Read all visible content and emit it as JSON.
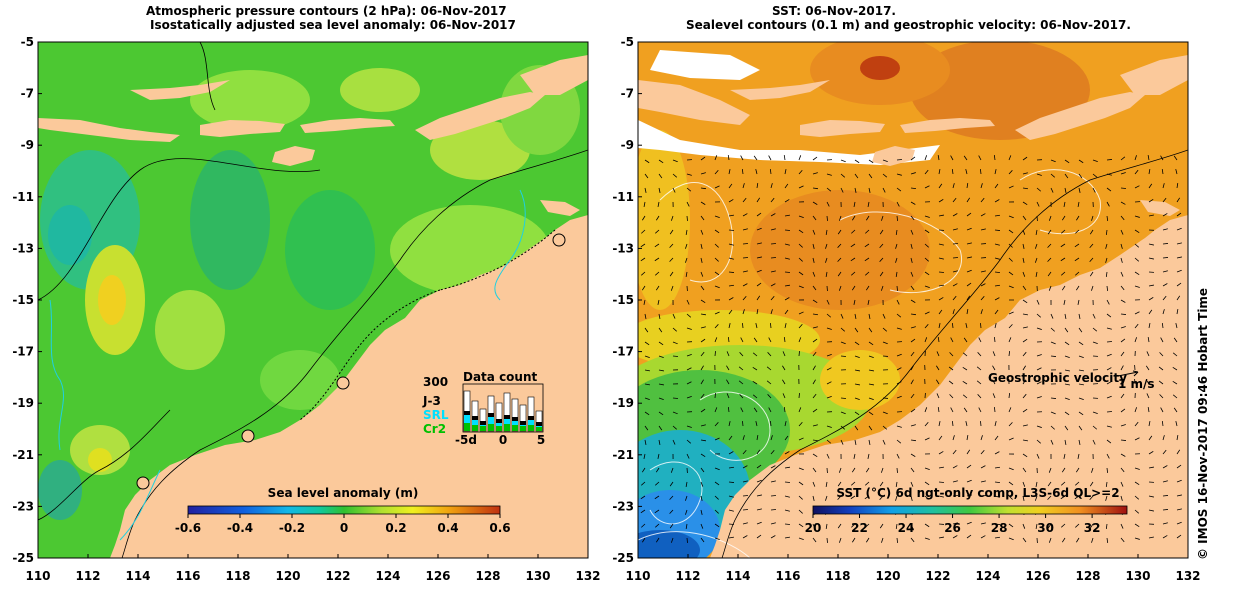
{
  "left_panel": {
    "title_line1": "Atmospheric pressure contours (2 hPa): 06-Nov-2017",
    "title_line2": "Isostatically adjusted sea level anomaly: 06-Nov-2017",
    "y_ticks": [
      "-5",
      "-7",
      "-9",
      "-11",
      "-13",
      "-15",
      "-17",
      "-19",
      "-21",
      "-23",
      "-25"
    ],
    "x_ticks": [
      "110",
      "112",
      "114",
      "116",
      "118",
      "120",
      "122",
      "124",
      "126",
      "128",
      "130",
      "132"
    ],
    "colorbar_label": "Sea level anomaly (m)",
    "colorbar_ticks": [
      "-0.6",
      "-0.4",
      "-0.2",
      "0",
      "0.2",
      "0.4",
      "0.6"
    ],
    "colorbar_range": [
      -0.6,
      0.6
    ],
    "data_count": {
      "title": "Data count",
      "ymax_label": "300",
      "series_labels": [
        "J-3",
        "SRL",
        "Cr2"
      ],
      "series_colors": [
        "#000000",
        "#00e0ff",
        "#00c000"
      ],
      "x_ticks": [
        "-5d",
        "0",
        "5"
      ]
    }
  },
  "right_panel": {
    "title_line1": "SST: 06-Nov-2017.",
    "title_line2": "Sealevel contours (0.1 m) and geostrophic velocity: 06-Nov-2017.",
    "y_ticks": [
      "-5",
      "-7",
      "-9",
      "-11",
      "-13",
      "-15",
      "-17",
      "-19",
      "-21",
      "-23",
      "-25"
    ],
    "x_ticks": [
      "110",
      "112",
      "114",
      "116",
      "118",
      "120",
      "122",
      "124",
      "126",
      "128",
      "130",
      "132"
    ],
    "velocity_label": "Geostrophic velocity",
    "velocity_scale": "1 m/s",
    "colorbar_label": "SST (°C) 6d ngt-only comp, L3S-6d QL>=2",
    "colorbar_ticks": [
      "20",
      "22",
      "24",
      "26",
      "28",
      "30",
      "32"
    ],
    "colorbar_range": [
      20,
      33.5
    ]
  },
  "credit": "© IMOS 16-Nov-2017 09:46 Hobart Time",
  "colors": {
    "land": "#fbc99b",
    "ocean_green": "#4cc832",
    "ocean_lightgreen": "#8ee03c",
    "sst_orange": "#f0a020",
    "sst_blue": "#2a90e8"
  },
  "map_extent": {
    "lon": [
      110,
      132
    ],
    "lat": [
      -25,
      -5
    ]
  }
}
